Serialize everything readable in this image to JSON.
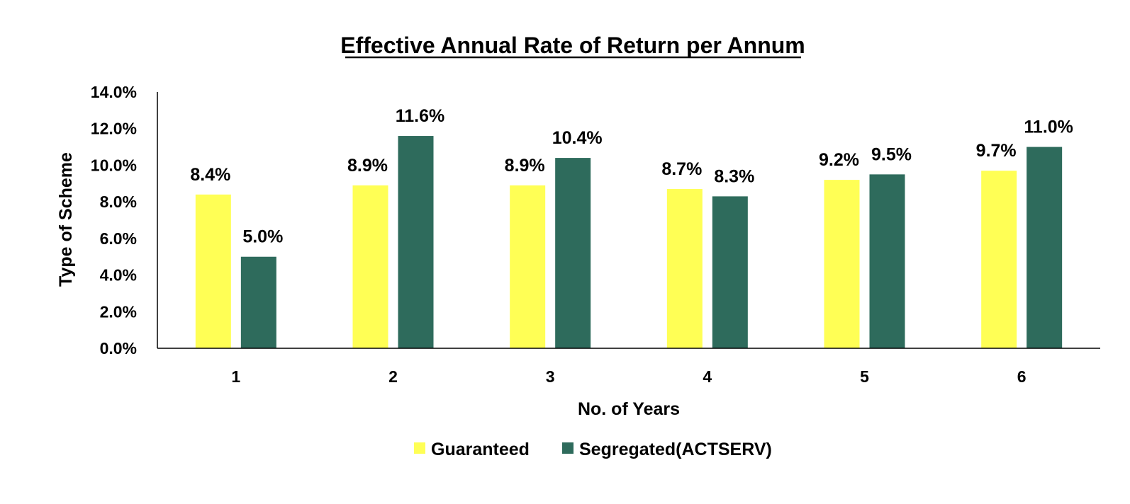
{
  "chart_data": {
    "type": "bar",
    "title": "Effective Annual Rate of Return per Annum",
    "xlabel": "No. of Years",
    "ylabel": "Type of Scheme",
    "categories": [
      "1",
      "2",
      "3",
      "4",
      "5",
      "6"
    ],
    "series": [
      {
        "name": "Guaranteed",
        "color": "#FFFF55",
        "values": [
          8.4,
          8.9,
          8.9,
          8.7,
          9.2,
          9.7
        ],
        "labels": [
          "8.4%",
          "8.9%",
          "8.9%",
          "8.7%",
          "9.2%",
          "9.7%"
        ]
      },
      {
        "name": "Segregated(ACTSERV)",
        "color": "#2E6B5C",
        "values": [
          5.0,
          11.6,
          10.4,
          8.3,
          9.5,
          11.0
        ],
        "labels": [
          "5.0%",
          "11.6%",
          "10.4%",
          "8.3%",
          "9.5%",
          "11.0%"
        ]
      }
    ],
    "yticks": [
      "0.0%",
      "2.0%",
      "4.0%",
      "6.0%",
      "8.0%",
      "10.0%",
      "12.0%",
      "14.0%"
    ],
    "ylim": [
      0,
      14
    ],
    "grid": false,
    "legend": "bottom"
  }
}
